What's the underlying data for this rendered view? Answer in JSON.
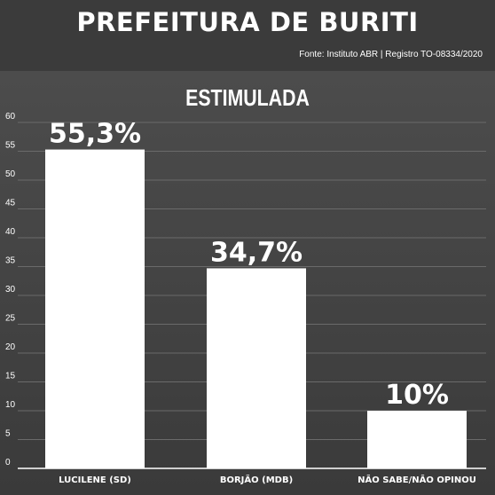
{
  "header": {
    "title": "PREFEITURA DE BURITI",
    "source": "Fonte: Instituto ABR | Registro TO-08334/2020"
  },
  "chart_data": {
    "type": "bar",
    "title": "ESTIMULADA",
    "categories": [
      "LUCILENE (SD)",
      "BORJÃO (MDB)",
      "NÃO SABE/NÃO OPINOU"
    ],
    "values": [
      55.3,
      34.7,
      10
    ],
    "data_labels": [
      "55,3%",
      "34,7%",
      "10%"
    ],
    "yticks": [
      0,
      5,
      10,
      15,
      20,
      25,
      30,
      35,
      40,
      45,
      50,
      55,
      60
    ],
    "ylim": [
      0,
      60
    ],
    "grid": true,
    "colors": {
      "bar": "#ffffff",
      "grid": "#6a6a6a",
      "text": "#ffffff"
    }
  }
}
